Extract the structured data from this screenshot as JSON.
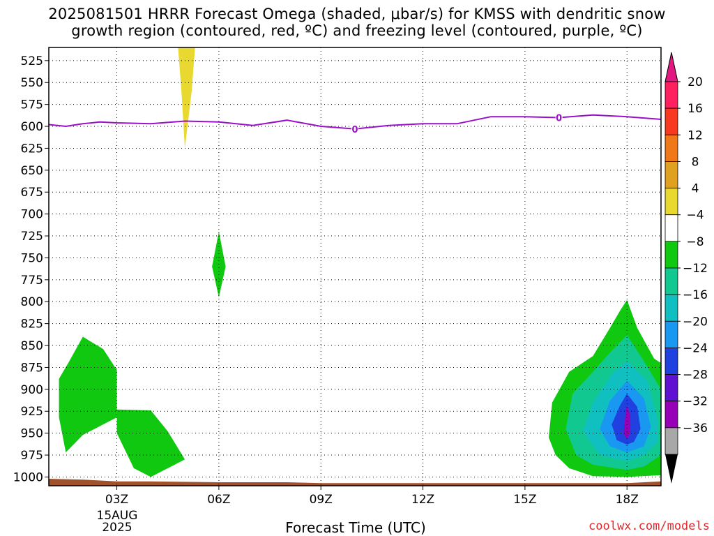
{
  "title_line1": "2025081501 HRRR Forecast Omega (shaded, μbar/s) for KMSS with dendritic snow",
  "title_line2": "growth region (contoured, red, ºC) and freezing level (contoured, purple, ºC)",
  "xlabel": "Forecast Time (UTC)",
  "credit": "coolwx.com/models",
  "date_sub1": "15AUG",
  "date_sub2": "2025",
  "chart_data": {
    "type": "heatmap",
    "title": "2025081501 HRRR Forecast Omega (shaded, μbar/s) for KMSS with dendritic snow growth region (contoured, red, ºC) and freezing level (contoured, purple, ºC)",
    "xlabel": "Forecast Time (UTC)",
    "ylabel": "",
    "x_range_hours_utc": [
      1,
      19
    ],
    "x_ticks": [
      {
        "hour": 3,
        "label": "03Z"
      },
      {
        "hour": 6,
        "label": "06Z"
      },
      {
        "hour": 9,
        "label": "09Z"
      },
      {
        "hour": 12,
        "label": "12Z"
      },
      {
        "hour": 15,
        "label": "15Z"
      },
      {
        "hour": 18,
        "label": "18Z"
      }
    ],
    "y_range_hpa": [
      1010,
      510
    ],
    "y_ticks": [
      525,
      550,
      575,
      600,
      625,
      650,
      675,
      700,
      725,
      750,
      775,
      800,
      825,
      850,
      875,
      900,
      925,
      950,
      975,
      1000
    ],
    "grid": true,
    "colorbar": {
      "levels": [
        "20",
        "16",
        "12",
        "8",
        "4",
        "−4",
        "−8",
        "−12",
        "−16",
        "−20",
        "−24",
        "−28",
        "−32",
        "−36"
      ],
      "colors": [
        "#ff2060",
        "#f83820",
        "#f07818",
        "#e0a020",
        "#e8d830",
        "#ffffff",
        "#10c810",
        "#10c890",
        "#10c0c0",
        "#1898f0",
        "#2040e0",
        "#6010d0",
        "#9800b8",
        "#a8a8a8"
      ],
      "top_arrow_color": "#e01880",
      "bottom_arrow_color": "#000000"
    },
    "freezing_level": {
      "color": "#9a10c8",
      "label": "0",
      "points": [
        [
          1,
          598
        ],
        [
          1.5,
          600
        ],
        [
          2,
          597
        ],
        [
          2.5,
          595
        ],
        [
          3,
          596
        ],
        [
          4,
          597
        ],
        [
          5,
          594
        ],
        [
          6,
          595
        ],
        [
          7,
          599
        ],
        [
          8,
          593
        ],
        [
          9,
          600
        ],
        [
          10,
          603
        ],
        [
          11,
          599
        ],
        [
          12,
          597
        ],
        [
          13,
          597
        ],
        [
          14,
          589
        ],
        [
          15,
          589
        ],
        [
          16,
          590
        ],
        [
          17,
          587
        ],
        [
          18,
          589
        ],
        [
          19,
          592
        ]
      ],
      "label_points": [
        [
          10,
          603
        ],
        [
          16,
          590
        ]
      ]
    },
    "omega_regions": [
      {
        "name": "rising-cell-left-upper",
        "level_from": "−4",
        "level_to": "−8",
        "color": "#10c810",
        "points": [
          [
            1.6,
            868
          ],
          [
            2.0,
            840
          ],
          [
            2.6,
            854
          ],
          [
            3.0,
            878
          ],
          [
            3.0,
            916
          ],
          [
            3.0,
            932
          ],
          [
            2.0,
            952
          ],
          [
            1.5,
            972
          ],
          [
            1.3,
            932
          ],
          [
            1.3,
            888
          ]
        ]
      },
      {
        "name": "rising-cell-left-lower",
        "level_from": "−4",
        "level_to": "−8",
        "color": "#10c810",
        "points": [
          [
            3.0,
            923
          ],
          [
            4.0,
            924
          ],
          [
            4.5,
            948
          ],
          [
            5.0,
            980
          ],
          [
            4.0,
            1000
          ],
          [
            3.5,
            990
          ],
          [
            3.0,
            950
          ]
        ]
      },
      {
        "name": "rising-cell-mid",
        "level_from": "−4",
        "level_to": "−8",
        "color": "#10c810",
        "points": [
          [
            6.0,
            720
          ],
          [
            6.2,
            760
          ],
          [
            6.0,
            795
          ],
          [
            5.8,
            760
          ]
        ]
      },
      {
        "name": "sinking-plume",
        "level_from": "4",
        "level_to": "8",
        "color": "#e8d830",
        "points": [
          [
            4.8,
            510
          ],
          [
            5.3,
            510
          ],
          [
            5.2,
            560
          ],
          [
            5.0,
            625
          ],
          [
            4.9,
            560
          ]
        ]
      },
      {
        "name": "rising-cell-right-1",
        "level_from": "−4",
        "level_to": "−8",
        "color": "#10c810",
        "points": [
          [
            15.7,
            955
          ],
          [
            15.8,
            915
          ],
          [
            16.3,
            880
          ],
          [
            17.0,
            862
          ],
          [
            17.5,
            830
          ],
          [
            17.8,
            810
          ],
          [
            18.0,
            798
          ],
          [
            18.3,
            830
          ],
          [
            18.8,
            865
          ],
          [
            19.0,
            870
          ],
          [
            19.0,
            998
          ],
          [
            18.0,
            1000
          ],
          [
            17.0,
            999
          ],
          [
            16.3,
            990
          ],
          [
            15.9,
            975
          ]
        ]
      },
      {
        "name": "rising-cell-right-2",
        "level_from": "−8",
        "level_to": "−12",
        "color": "#10c890",
        "points": [
          [
            16.2,
            945
          ],
          [
            16.4,
            905
          ],
          [
            17.0,
            880
          ],
          [
            17.5,
            858
          ],
          [
            18.0,
            838
          ],
          [
            18.5,
            868
          ],
          [
            19.0,
            900
          ],
          [
            19.0,
            975
          ],
          [
            18.5,
            988
          ],
          [
            18.0,
            992
          ],
          [
            17.0,
            986
          ],
          [
            16.5,
            975
          ]
        ]
      },
      {
        "name": "rising-cell-right-3",
        "level_from": "−12",
        "level_to": "−16",
        "color": "#10c0c0",
        "points": [
          [
            16.7,
            948
          ],
          [
            17.0,
            915
          ],
          [
            17.6,
            880
          ],
          [
            18.0,
            868
          ],
          [
            18.6,
            890
          ],
          [
            18.9,
            935
          ],
          [
            18.9,
            960
          ],
          [
            18.5,
            975
          ],
          [
            18.0,
            982
          ],
          [
            17.2,
            975
          ]
        ]
      },
      {
        "name": "rising-cell-right-4",
        "level_from": "−16",
        "level_to": "−20",
        "color": "#1898f0",
        "points": [
          [
            17.2,
            945
          ],
          [
            17.5,
            913
          ],
          [
            18.0,
            890
          ],
          [
            18.5,
            910
          ],
          [
            18.7,
            943
          ],
          [
            18.5,
            965
          ],
          [
            18.0,
            972
          ],
          [
            17.5,
            965
          ]
        ]
      },
      {
        "name": "rising-cell-right-5",
        "level_from": "−20",
        "level_to": "−24",
        "color": "#2040e0",
        "points": [
          [
            17.55,
            940
          ],
          [
            17.8,
            918
          ],
          [
            18.0,
            905
          ],
          [
            18.3,
            920
          ],
          [
            18.4,
            945
          ],
          [
            18.2,
            960
          ],
          [
            18.0,
            963
          ],
          [
            17.7,
            958
          ]
        ]
      },
      {
        "name": "rising-cell-right-6",
        "level_from": "−28",
        "level_to": "−32",
        "color": "#9800b8",
        "points": [
          [
            17.95,
            930
          ],
          [
            18.0,
            918
          ],
          [
            18.1,
            930
          ],
          [
            18.1,
            950
          ],
          [
            18.0,
            957
          ],
          [
            17.9,
            950
          ]
        ]
      }
    ],
    "terrain": {
      "color": "#a0522d",
      "points": [
        [
          1,
          1002
        ],
        [
          2,
          1003
        ],
        [
          3,
          1005
        ],
        [
          4,
          1005
        ],
        [
          6,
          1006
        ],
        [
          8,
          1006
        ],
        [
          9,
          1007
        ],
        [
          12,
          1007
        ],
        [
          15,
          1007
        ],
        [
          18,
          1007
        ],
        [
          19,
          1005
        ]
      ]
    }
  }
}
